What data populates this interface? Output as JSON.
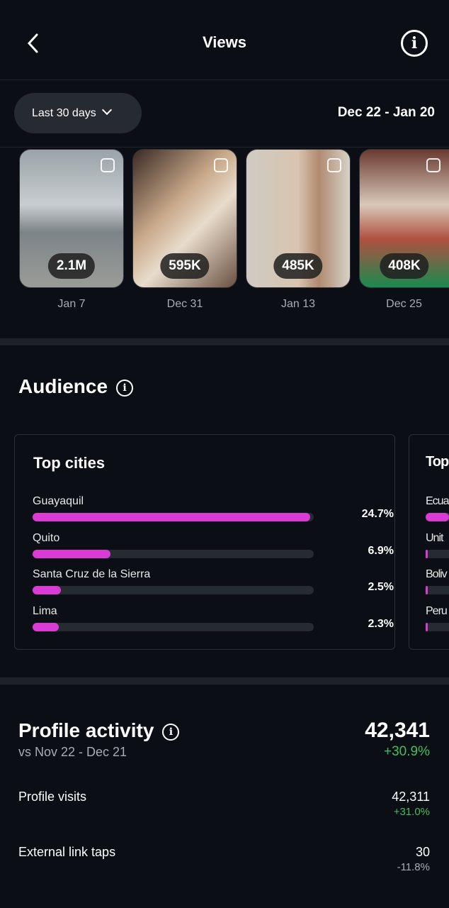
{
  "header": {
    "title": "Views"
  },
  "filter": {
    "label": "Last 30 days",
    "range": "Dec 22 - Jan 20"
  },
  "posts": [
    {
      "views": "2.1M",
      "date": "Jan 7"
    },
    {
      "views": "595K",
      "date": "Dec 31"
    },
    {
      "views": "485K",
      "date": "Jan 13"
    },
    {
      "views": "408K",
      "date": "Dec 25"
    }
  ],
  "audience": {
    "title": "Audience",
    "top_cities": {
      "title": "Top cities",
      "items": [
        {
          "name": "Guayaquil",
          "pct": "24.7%",
          "value": 24.7
        },
        {
          "name": "Quito",
          "pct": "6.9%",
          "value": 6.9
        },
        {
          "name": "Santa Cruz de la Sierra",
          "pct": "2.5%",
          "value": 2.5
        },
        {
          "name": "Lima",
          "pct": "2.3%",
          "value": 2.3
        }
      ]
    },
    "second_card": {
      "title": "Top",
      "items": [
        {
          "name": "Ecua",
          "value": 60
        },
        {
          "name": "Unit",
          "value": 5
        },
        {
          "name": "Boliv",
          "value": 5
        },
        {
          "name": "Peru",
          "value": 5
        }
      ]
    }
  },
  "profile_activity": {
    "title": "Profile activity",
    "compare": "vs Nov 22 - Dec 21",
    "total": "42,341",
    "change": "+30.9%",
    "rows": [
      {
        "label": "Profile visits",
        "value": "42,311",
        "change": "+31.0%"
      },
      {
        "label": "External link taps",
        "value": "30",
        "change": "-11.8%"
      }
    ]
  },
  "colors": {
    "accent": "#d93bd4",
    "positive": "#3fbf5f",
    "negative": "#a8acb3"
  }
}
